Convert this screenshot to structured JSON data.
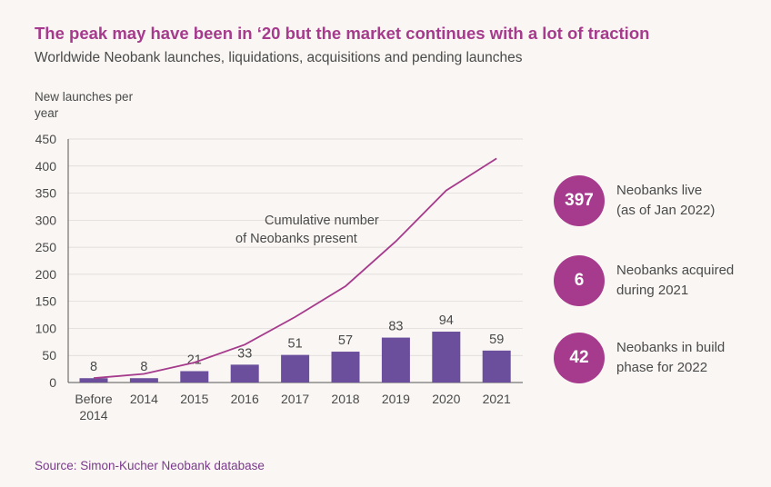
{
  "title": "The peak may have been in ‘20 but the market continues with a lot of traction",
  "subtitle": "Worldwide Neobank launches, liquidations, acquisitions and pending launches",
  "source": "Source: Simon-Kucher Neobank database",
  "colors": {
    "accent": "#a63a8c",
    "bar": "#6b4f9c",
    "line": "#a63a8c",
    "text": "#4a4a4a",
    "grid": "#d9d6d3"
  },
  "kpis": [
    {
      "value": "397",
      "label": "Neobanks live\n(as of Jan 2022)"
    },
    {
      "value": "6",
      "label": "Neobanks acquired\nduring 2021"
    },
    {
      "value": "42",
      "label": "Neobanks in build\nphase for 2022"
    }
  ],
  "chart_data": {
    "type": "bar",
    "ylabel": "New launches per year",
    "ylim": [
      0,
      450
    ],
    "yticks": [
      0,
      50,
      100,
      150,
      200,
      250,
      300,
      350,
      400,
      450
    ],
    "categories": [
      "Before 2014",
      "2014",
      "2015",
      "2016",
      "2017",
      "2018",
      "2019",
      "2020",
      "2021"
    ],
    "series": [
      {
        "type": "bar",
        "values": [
          8,
          8,
          21,
          33,
          51,
          57,
          83,
          94,
          59
        ]
      },
      {
        "name": "Cumulative number of Neobanks present",
        "type": "line",
        "values": [
          8,
          16,
          37,
          70,
          121,
          178,
          261,
          355,
          414
        ]
      }
    ],
    "grid": true
  }
}
